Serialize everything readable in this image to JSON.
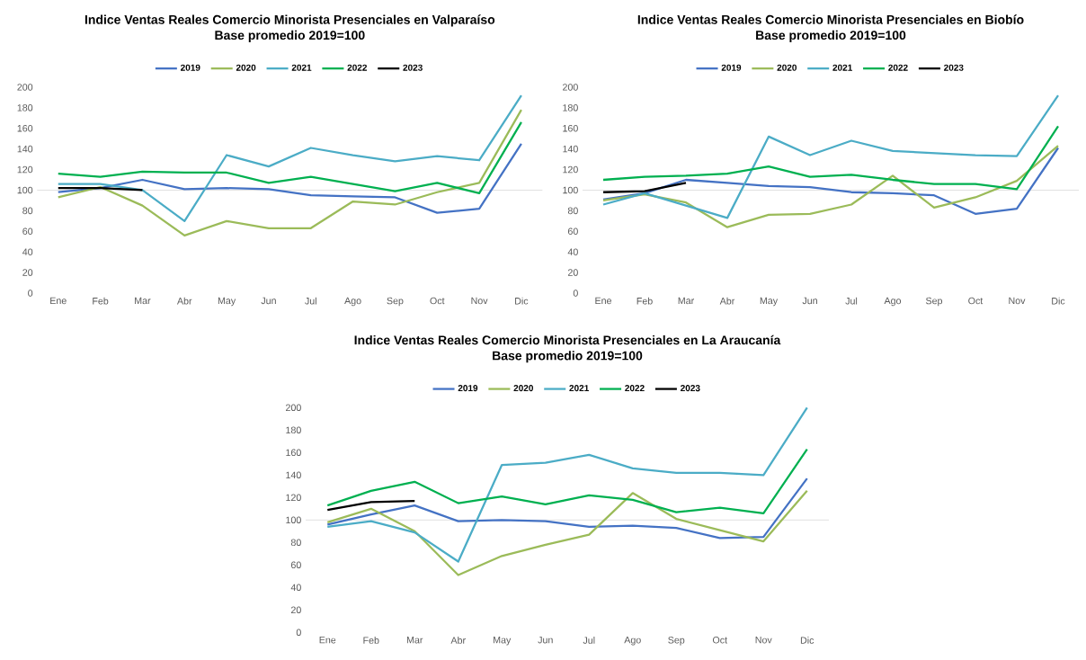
{
  "chart_data": [
    {
      "type": "line",
      "title": "Indice Ventas Reales Comercio Minorista Presenciales en Valparaíso",
      "subtitle": "Base promedio 2019=100",
      "categories": [
        "Ene",
        "Feb",
        "Mar",
        "Abr",
        "May",
        "Jun",
        "Jul",
        "Ago",
        "Sep",
        "Oct",
        "Nov",
        "Dic"
      ],
      "series": [
        {
          "name": "2019",
          "color": "#4472c4",
          "values": [
            98,
            102,
            110,
            101,
            102,
            101,
            95,
            94,
            93,
            78,
            82,
            145
          ]
        },
        {
          "name": "2020",
          "color": "#9bbb59",
          "values": [
            93,
            103,
            85,
            56,
            70,
            63,
            63,
            89,
            86,
            98,
            107,
            178
          ]
        },
        {
          "name": "2021",
          "color": "#4bacc6",
          "values": [
            106,
            106,
            100,
            70,
            134,
            123,
            141,
            134,
            128,
            133,
            129,
            192
          ]
        },
        {
          "name": "2022",
          "color": "#00b050",
          "values": [
            116,
            113,
            118,
            117,
            117,
            107,
            113,
            106,
            99,
            107,
            97,
            166
          ]
        },
        {
          "name": "2023",
          "color": "#000000",
          "values": [
            102,
            102,
            100,
            null,
            null,
            null,
            null,
            null,
            null,
            null,
            null,
            null
          ]
        }
      ],
      "ylim": [
        0,
        200
      ],
      "yticks": [
        0,
        20,
        40,
        60,
        80,
        100,
        120,
        140,
        160,
        180,
        200
      ],
      "legend": "top",
      "ref_lines": [
        {
          "axis": "y",
          "value": 100,
          "color": "#d9d9d9"
        }
      ]
    },
    {
      "type": "line",
      "title": "Indice Ventas Reales Comercio Minorista Presenciales en Biobío",
      "subtitle": "Base promedio 2019=100",
      "categories": [
        "Ene",
        "Feb",
        "Mar",
        "Abr",
        "May",
        "Jun",
        "Jul",
        "Ago",
        "Sep",
        "Oct",
        "Nov",
        "Dic"
      ],
      "series": [
        {
          "name": "2019",
          "color": "#4472c4",
          "values": [
            91,
            97,
            110,
            107,
            104,
            103,
            98,
            97,
            95,
            77,
            82,
            141
          ]
        },
        {
          "name": "2020",
          "color": "#9bbb59",
          "values": [
            90,
            96,
            88,
            64,
            76,
            77,
            86,
            114,
            83,
            93,
            109,
            143
          ]
        },
        {
          "name": "2021",
          "color": "#4bacc6",
          "values": [
            86,
            97,
            85,
            73,
            152,
            134,
            148,
            138,
            136,
            134,
            133,
            192
          ]
        },
        {
          "name": "2022",
          "color": "#00b050",
          "values": [
            110,
            113,
            114,
            116,
            123,
            113,
            115,
            110,
            106,
            106,
            101,
            162
          ]
        },
        {
          "name": "2023",
          "color": "#000000",
          "values": [
            98,
            99,
            107,
            null,
            null,
            null,
            null,
            null,
            null,
            null,
            null,
            null
          ]
        }
      ],
      "ylim": [
        0,
        200
      ],
      "yticks": [
        0,
        20,
        40,
        60,
        80,
        100,
        120,
        140,
        160,
        180,
        200
      ],
      "legend": "top",
      "ref_lines": [
        {
          "axis": "y",
          "value": 100,
          "color": "#d9d9d9"
        }
      ]
    },
    {
      "type": "line",
      "title": "Indice Ventas Reales Comercio Minorista Presenciales en La Araucanía",
      "subtitle": "Base promedio 2019=100",
      "categories": [
        "Ene",
        "Feb",
        "Mar",
        "Abr",
        "May",
        "Jun",
        "Jul",
        "Ago",
        "Sep",
        "Oct",
        "Nov",
        "Dic"
      ],
      "series": [
        {
          "name": "2019",
          "color": "#4472c4",
          "values": [
            96,
            105,
            113,
            99,
            100,
            99,
            94,
            95,
            93,
            84,
            85,
            137
          ]
        },
        {
          "name": "2020",
          "color": "#9bbb59",
          "values": [
            98,
            110,
            90,
            51,
            68,
            78,
            87,
            124,
            101,
            91,
            81,
            126
          ]
        },
        {
          "name": "2021",
          "color": "#4bacc6",
          "values": [
            94,
            99,
            89,
            63,
            149,
            151,
            158,
            146,
            142,
            142,
            140,
            200
          ]
        },
        {
          "name": "2022",
          "color": "#00b050",
          "values": [
            113,
            126,
            134,
            115,
            121,
            114,
            122,
            118,
            107,
            111,
            106,
            163
          ]
        },
        {
          "name": "2023",
          "color": "#000000",
          "values": [
            109,
            116,
            117,
            null,
            null,
            null,
            null,
            null,
            null,
            null,
            null,
            null
          ]
        }
      ],
      "ylim": [
        0,
        200
      ],
      "yticks": [
        0,
        20,
        40,
        60,
        80,
        100,
        120,
        140,
        160,
        180,
        200
      ],
      "legend": "top",
      "ref_lines": [
        {
          "axis": "y",
          "value": 100,
          "color": "#d9d9d9"
        }
      ]
    }
  ]
}
